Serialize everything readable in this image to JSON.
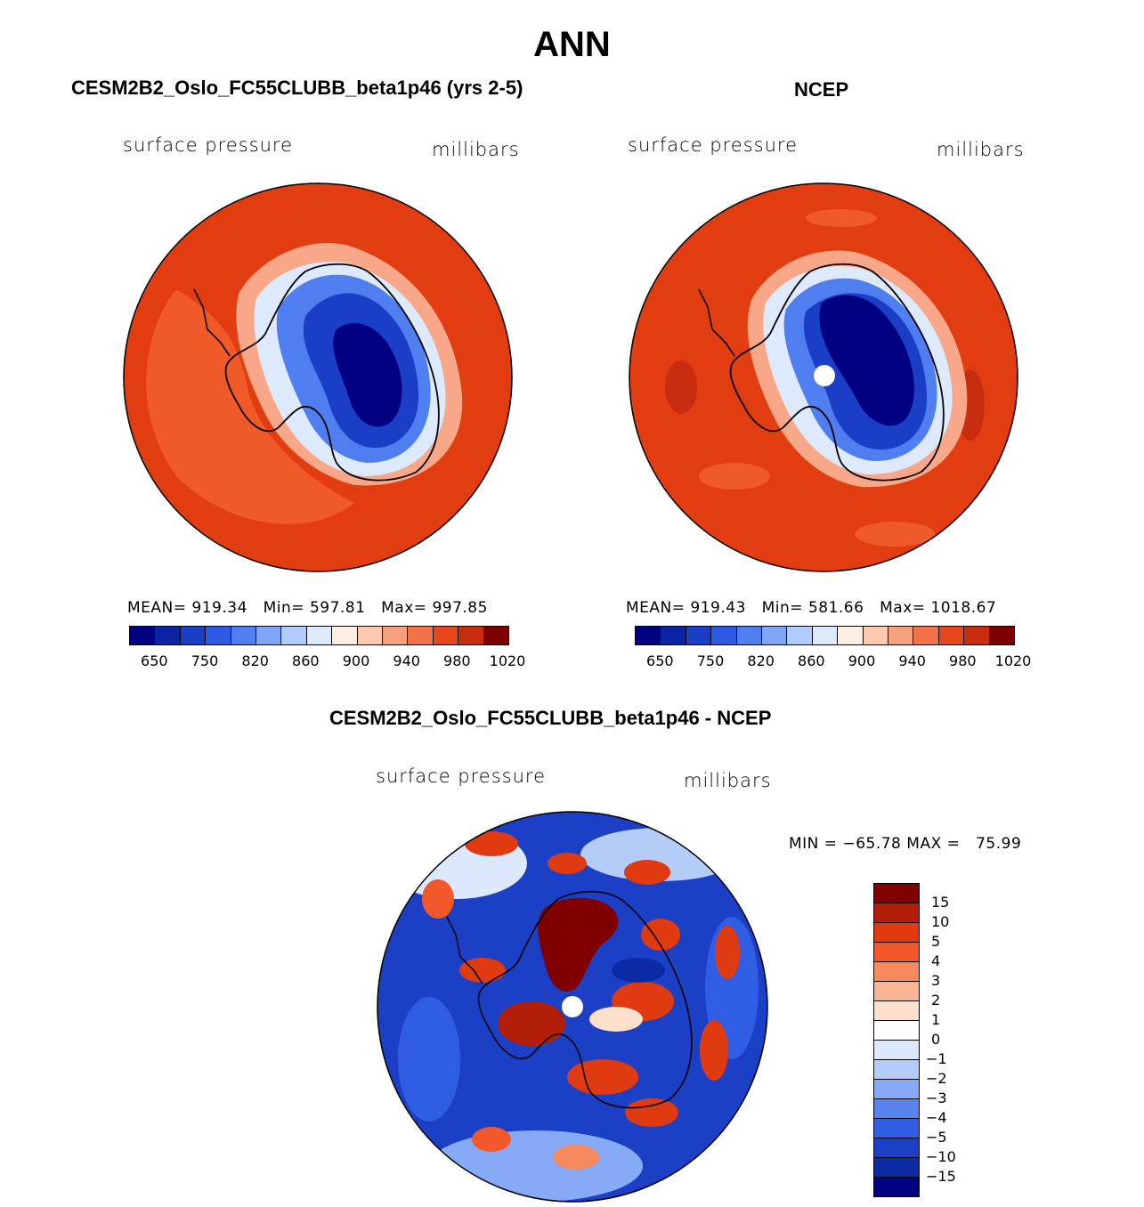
{
  "season": "ANN",
  "colors": {
    "abs_scale": [
      "#000080",
      "#0b24a6",
      "#1b3ec7",
      "#2f5ae3",
      "#4f7ef0",
      "#7fa6f6",
      "#b0cbf9",
      "#dde9fc",
      "#fdece2",
      "#fbcab1",
      "#f6a07d",
      "#f27347",
      "#e5461c",
      "#c82d0f",
      "#7f0000"
    ],
    "diff_scale": [
      "#800000",
      "#b31e08",
      "#e03a10",
      "#f2582a",
      "#f6895e",
      "#fab693",
      "#fde0cc",
      "#ffffff",
      "#dce8fb",
      "#b3cdf8",
      "#86aaf5",
      "#5984ee",
      "#2f5de3",
      "#1b40c6",
      "#0d2aa5",
      "#000080"
    ],
    "coast": "#000000"
  },
  "panels": [
    {
      "title": "CESM2B2_Oslo_FC55CLUBB_beta1p46 (yrs 2-5)",
      "variable": "surface pressure",
      "units": "millibars",
      "stats": {
        "mean_label": "MEAN=",
        "mean": "919.34",
        "min_label": "Min=",
        "min": "597.81",
        "max_label": "Max=",
        "max": "997.85"
      },
      "pole_marker": false
    },
    {
      "title": "NCEP",
      "variable": "surface pressure",
      "units": "millibars",
      "stats": {
        "mean_label": "MEAN=",
        "mean": "919.43",
        "min_label": "Min=",
        "min": "581.66",
        "max_label": "Max=",
        "max": "1018.67"
      },
      "pole_marker": true
    }
  ],
  "abs_colorbar_labels": [
    "650",
    "750",
    "820",
    "860",
    "900",
    "940",
    "980",
    "1020"
  ],
  "diff": {
    "title": "CESM2B2_Oslo_FC55CLUBB_beta1p46 - NCEP",
    "variable": "surface pressure",
    "units": "millibars",
    "min_label": "MIN =",
    "min": "−65.78",
    "max_label": "MAX =",
    "max": "75.99",
    "colorbar_labels": [
      "15",
      "10",
      "5",
      "4",
      "3",
      "2",
      "1",
      "0",
      "−1",
      "−2",
      "−3",
      "−4",
      "−5",
      "−10",
      "−15"
    ]
  }
}
